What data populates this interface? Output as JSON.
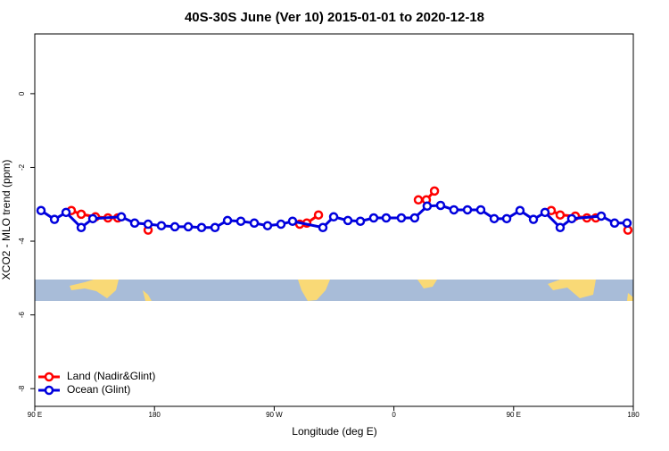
{
  "chart_data": {
    "type": "line",
    "title": "40S-30S June (Ver 10)   2015-01-01 to 2020-12-18",
    "x_label": "Longitude (deg E)",
    "y_label": "XCO2 - MLO trend (ppm)",
    "xlim": [
      90,
      540
    ],
    "ylim": [
      -8.48,
      1.62
    ],
    "xticks": [
      {
        "value": 90,
        "label": "90 E"
      },
      {
        "value": 180,
        "label": "180"
      },
      {
        "value": 270,
        "label": "90 W"
      },
      {
        "value": 360,
        "label": "0"
      },
      {
        "value": 450,
        "label": "90 E"
      },
      {
        "value": 540,
        "label": "180"
      }
    ],
    "yticks": [
      0,
      -2,
      -4,
      -6,
      -8
    ],
    "legend": "bottom-left",
    "series": [
      {
        "name": "Land (Nadir&Glint)",
        "color": "#ff0000",
        "x": [
          117.5,
          124.9,
          135.6,
          145.0,
          152.4,
          null,
          175.2,
          null,
          289.2,
          294.5,
          303.3,
          null,
          378.4,
          384.4,
          390.5,
          null,
          478.3,
          485.0,
          496.4,
          505.1,
          511.8,
          null,
          535.9
        ],
        "values": [
          -3.17,
          -3.27,
          -3.34,
          -3.37,
          -3.37,
          null,
          -3.7,
          null,
          -3.54,
          -3.51,
          -3.29,
          null,
          -2.88,
          -2.88,
          -2.64,
          null,
          -3.17,
          -3.29,
          -3.32,
          -3.37,
          -3.37,
          null,
          -3.7
        ]
      },
      {
        "name": "Ocean (Glint)",
        "color": "#0000dd",
        "x": [
          94.7,
          104.8,
          113.5,
          124.9,
          133.6,
          155.1,
          165.1,
          175.2,
          185.2,
          195.3,
          205.4,
          215.4,
          225.5,
          234.9,
          244.9,
          255.0,
          265.0,
          275.1,
          283.8,
          306.6,
          314.7,
          325.4,
          334.8,
          344.8,
          354.2,
          365.6,
          375.6,
          385.0,
          395.1,
          405.1,
          415.3,
          425.3,
          435.4,
          444.8,
          454.8,
          464.9,
          473.6,
          485.0,
          493.7,
          515.9,
          525.9,
          535.3
        ],
        "values": [
          -3.17,
          -3.41,
          -3.22,
          -3.63,
          -3.39,
          -3.34,
          -3.51,
          -3.54,
          -3.58,
          -3.61,
          -3.61,
          -3.63,
          -3.63,
          -3.44,
          -3.46,
          -3.51,
          -3.58,
          -3.54,
          -3.46,
          -3.63,
          -3.34,
          -3.44,
          -3.46,
          -3.37,
          -3.37,
          -3.37,
          -3.37,
          -3.05,
          -3.03,
          -3.15,
          -3.15,
          -3.15,
          -3.39,
          -3.39,
          -3.17,
          -3.41,
          -3.22,
          -3.63,
          -3.39,
          -3.32,
          -3.51,
          -3.51
        ]
      }
    ]
  }
}
